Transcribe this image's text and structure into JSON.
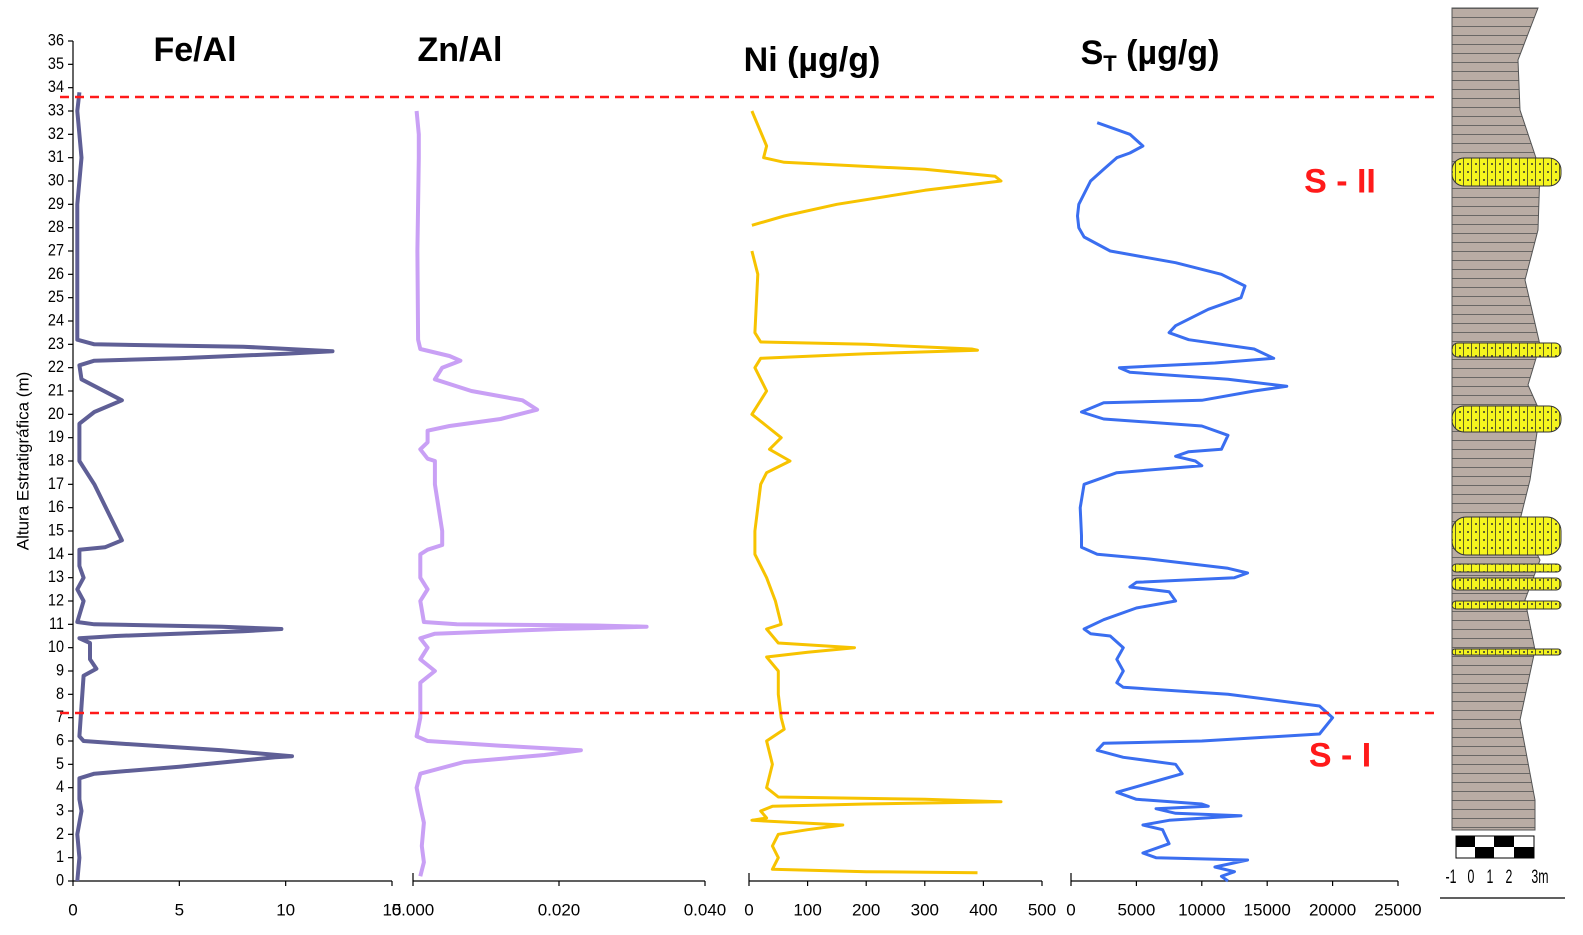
{
  "chart_data": [
    {
      "type": "line",
      "title": "Fe/Al",
      "color": "#5f5f96",
      "xlim": [
        0,
        15
      ],
      "xticks": [
        0,
        5,
        10,
        15
      ],
      "ylim": [
        0,
        36
      ],
      "yticks": [
        0,
        1,
        2,
        3,
        4,
        5,
        6,
        7,
        8,
        9,
        10,
        11,
        12,
        13,
        14,
        15,
        16,
        17,
        18,
        19,
        20,
        21,
        22,
        23,
        24,
        25,
        26,
        27,
        28,
        29,
        30,
        31,
        32,
        33,
        34,
        35,
        36
      ],
      "ylabel": "Altura Estratigráfica (m)",
      "values": [
        0.3,
        0.2,
        0.4,
        0.2,
        0.2,
        0.2,
        1,
        8,
        12.2,
        10,
        5,
        1,
        0.3,
        0.4,
        2.3,
        1,
        0.3,
        0.3,
        1,
        2.3,
        1.5,
        0.3,
        0.3,
        0.5,
        0.2,
        0.5,
        0.2,
        1,
        7,
        9.8,
        8,
        2,
        0.3,
        0.8,
        0.8,
        1.1,
        0.5,
        0.4,
        0.3,
        0.5,
        2,
        7,
        10.3,
        9.5,
        5,
        1,
        0.3,
        0.3,
        0.4,
        0.2,
        0.3,
        0.2
      ],
      "y": [
        33.8,
        33,
        31,
        29,
        24,
        23.2,
        23,
        22.9,
        22.7,
        22.6,
        22.4,
        22.3,
        22.1,
        21.5,
        20.6,
        20.1,
        19.6,
        18,
        17,
        14.6,
        14.3,
        14.2,
        13.5,
        13,
        12.5,
        12,
        11.1,
        11,
        10.9,
        10.8,
        10.7,
        10.5,
        10.4,
        10.2,
        9.5,
        9.1,
        8.8,
        7.5,
        6.2,
        6,
        5.9,
        5.6,
        5.35,
        5.3,
        4.9,
        4.6,
        4.4,
        3.5,
        3,
        2,
        1,
        0
      ]
    },
    {
      "type": "line",
      "title": "Zn/Al",
      "color": "#c9a0f5",
      "xlim": [
        0,
        0.04
      ],
      "xticks": [
        {
          "value": 0,
          "label": "0.000"
        },
        {
          "value": 0.02,
          "label": "0.020"
        },
        {
          "value": 0.04,
          "label": "0.040"
        }
      ],
      "values": [
        0.0005,
        0.0008,
        0.0008,
        0.0006,
        0.0007,
        0.001,
        0.005,
        0.0065,
        0.004,
        0.003,
        0.008,
        0.015,
        0.017,
        0.012,
        0.005,
        0.002,
        0.002,
        0.001,
        0.002,
        0.003,
        0.003,
        0.004,
        0.004,
        0.002,
        0.001,
        0.001,
        0.002,
        0.001,
        0.0015,
        0.006,
        0.025,
        0.032,
        0.02,
        0.003,
        0.001,
        0.002,
        0.001,
        0.003,
        0.001,
        0.001,
        0.0005,
        0.002,
        0.012,
        0.023,
        0.018,
        0.007,
        0.001,
        0.0005,
        0.001,
        0.0015,
        0.0012,
        0.0015,
        0.001
      ],
      "y": [
        33,
        32,
        31,
        27,
        23.2,
        22.8,
        22.5,
        22.3,
        22,
        21.5,
        21,
        20.6,
        20.2,
        19.8,
        19.5,
        19.3,
        18.8,
        18.5,
        18.1,
        18,
        17,
        15,
        14.4,
        14.2,
        14,
        13,
        12.5,
        12,
        11.1,
        11,
        10.95,
        10.9,
        10.8,
        10.6,
        10.4,
        10,
        9.5,
        9,
        8.5,
        7,
        6.2,
        6,
        5.8,
        5.6,
        5.4,
        5.1,
        4.6,
        4,
        3.2,
        2.5,
        1.5,
        0.8,
        0.2
      ]
    },
    {
      "type": "line",
      "title": "Ni (µg/g)",
      "color": "#f7c300",
      "xlim": [
        0,
        500
      ],
      "xticks": [
        0,
        100,
        200,
        300,
        400,
        500
      ],
      "values": [
        5,
        30,
        25,
        60,
        300,
        420,
        430,
        300,
        150,
        60,
        5,
        null,
        5,
        15,
        10,
        20,
        200,
        380,
        390,
        200,
        20,
        10,
        30,
        5,
        30,
        55,
        35,
        70,
        30,
        20,
        10,
        10,
        30,
        45,
        55,
        30,
        50,
        180,
        100,
        30,
        50,
        50,
        55,
        60,
        30,
        40,
        30,
        50,
        300,
        430,
        200,
        40,
        20,
        30,
        5,
        160,
        100,
        50,
        40,
        50,
        40,
        200,
        390
      ],
      "y": [
        33,
        31.5,
        31,
        30.8,
        30.5,
        30.2,
        30,
        29.6,
        29,
        28.5,
        28.1,
        null,
        27,
        26,
        23.5,
        23.1,
        23,
        22.8,
        22.75,
        22.6,
        22.4,
        22,
        21,
        20,
        19.5,
        19,
        18.5,
        18,
        17.5,
        17,
        15,
        14,
        13,
        12,
        11,
        10.8,
        10.2,
        10,
        9.8,
        9.6,
        9,
        8,
        7,
        6.5,
        6,
        5,
        4,
        3.6,
        3.5,
        3.4,
        3.3,
        3.2,
        3,
        2.7,
        2.6,
        2.4,
        2.2,
        2,
        1.5,
        1,
        0.5,
        0.4,
        0.35
      ]
    },
    {
      "type": "line",
      "title": "S",
      "title_sub": "T",
      "title_rest": " (µg/g)",
      "color": "#3a6ef0",
      "xlim": [
        0,
        25000
      ],
      "xticks": [
        0,
        5000,
        10000,
        15000,
        20000,
        25000
      ],
      "values": [
        2000,
        4500,
        5500,
        4500,
        3500,
        2500,
        1500,
        600,
        500,
        600,
        1000,
        3000,
        8000,
        11500,
        13300,
        13000,
        10500,
        8000,
        7500,
        9000,
        14000,
        15500,
        11000,
        3700,
        4500,
        12000,
        16500,
        14000,
        10000,
        2500,
        800,
        2500,
        10000,
        12000,
        11500,
        9000,
        8000,
        9500,
        10000,
        3500,
        1000,
        700,
        800,
        800,
        2000,
        6000,
        12000,
        13500,
        12500,
        5000,
        4500,
        7500,
        8000,
        5000,
        2500,
        1000,
        1500,
        3000,
        4000,
        3500,
        4000,
        3500,
        4000,
        12000,
        19000,
        20000,
        19000,
        10000,
        2500,
        2000,
        4000,
        8000,
        8500,
        6000,
        3500,
        5000,
        10000,
        10500,
        6500,
        8000,
        13000,
        7500,
        5500,
        7000,
        7500,
        5500,
        6500,
        13500,
        11000,
        12500,
        11500,
        12000
      ],
      "y": [
        32.5,
        32,
        31.5,
        31.2,
        31,
        30.5,
        30,
        29,
        28.5,
        28,
        27.6,
        27,
        26.5,
        26,
        25.5,
        25,
        24.5,
        23.8,
        23.5,
        23.2,
        22.8,
        22.4,
        22.2,
        22,
        21.8,
        21.5,
        21.2,
        21,
        20.6,
        20.5,
        20.1,
        19.8,
        19.5,
        19.1,
        18.5,
        18.4,
        18.2,
        18,
        17.8,
        17.5,
        17,
        16,
        14.8,
        14.3,
        14,
        13.8,
        13.4,
        13.2,
        13,
        12.8,
        12.6,
        12.4,
        12,
        11.7,
        11.2,
        10.8,
        10.6,
        10.5,
        10,
        9.5,
        9,
        8.5,
        8.3,
        8,
        7.5,
        7,
        6.3,
        6,
        5.9,
        5.6,
        5.3,
        5,
        4.6,
        4.2,
        3.8,
        3.5,
        3.3,
        3.2,
        3.1,
        2.9,
        2.8,
        2.6,
        2.4,
        2.2,
        1.6,
        1.2,
        1,
        0.9,
        0.6,
        0.4,
        0.2,
        0
      ]
    }
  ],
  "hlines": [
    33.6,
    7.2
  ],
  "hline_color": "#ff1a1a",
  "annotations": [
    {
      "text": "S - II",
      "y": 29.9
    },
    {
      "text": "S - I",
      "y": 5.3
    }
  ],
  "scale_labels": [
    "-1",
    "0",
    "1",
    "2",
    "3m"
  ]
}
